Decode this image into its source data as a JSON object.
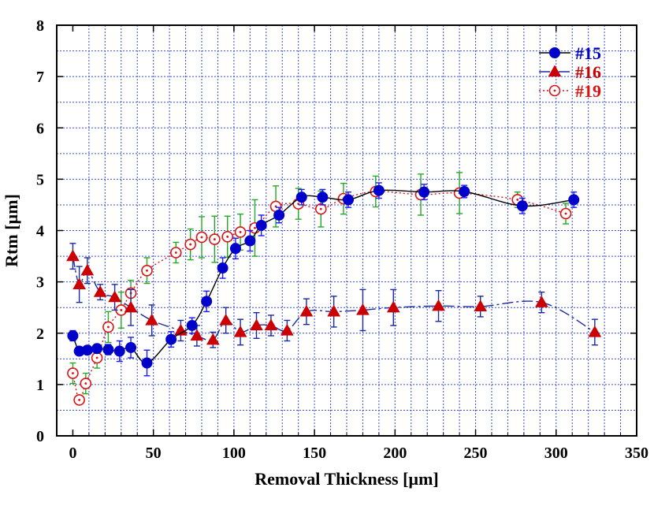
{
  "chart_data": {
    "type": "scatter",
    "title": "",
    "xlabel": "Removal Thickness [µm]",
    "ylabel": "Rtm [µm]",
    "xlim": [
      -10,
      350
    ],
    "ylim": [
      0,
      8
    ],
    "xticks": [
      0,
      50,
      100,
      150,
      200,
      250,
      300,
      350
    ],
    "yticks": [
      0,
      1,
      2,
      3,
      4,
      5,
      6,
      7,
      8
    ],
    "grid": true,
    "legend_position": "top-right",
    "series": [
      {
        "name": "#15",
        "color": "#0000cc",
        "marker": "circle-filled",
        "line": "solid",
        "line_color": "#000000",
        "error_color": "#1a1aff",
        "points": [
          {
            "x": 0,
            "y": 1.95,
            "err": 0.1
          },
          {
            "x": 4,
            "y": 1.65,
            "err": 0.08
          },
          {
            "x": 9,
            "y": 1.67,
            "err": 0.08
          },
          {
            "x": 15,
            "y": 1.7,
            "err": 0.08
          },
          {
            "x": 22,
            "y": 1.68,
            "err": 0.1
          },
          {
            "x": 29,
            "y": 1.65,
            "err": 0.2
          },
          {
            "x": 36,
            "y": 1.72,
            "err": 0.2
          },
          {
            "x": 46,
            "y": 1.42,
            "err": 0.25
          },
          {
            "x": 61,
            "y": 1.88,
            "err": 0.15
          },
          {
            "x": 74,
            "y": 2.15,
            "err": 0.15
          },
          {
            "x": 83,
            "y": 2.62,
            "err": 0.2
          },
          {
            "x": 93,
            "y": 3.27,
            "err": 0.2
          },
          {
            "x": 101,
            "y": 3.65,
            "err": 0.2
          },
          {
            "x": 110,
            "y": 3.8,
            "err": 0.2
          },
          {
            "x": 117,
            "y": 4.1,
            "err": 0.2
          },
          {
            "x": 128,
            "y": 4.3,
            "err": 0.15
          },
          {
            "x": 142,
            "y": 4.65,
            "err": 0.15
          },
          {
            "x": 155,
            "y": 4.65,
            "err": 0.15
          },
          {
            "x": 171,
            "y": 4.6,
            "err": 0.15
          },
          {
            "x": 190,
            "y": 4.78,
            "err": 0.15
          },
          {
            "x": 218,
            "y": 4.75,
            "err": 0.15
          },
          {
            "x": 243,
            "y": 4.76,
            "err": 0.12
          },
          {
            "x": 279,
            "y": 4.48,
            "err": 0.15
          },
          {
            "x": 311,
            "y": 4.6,
            "err": 0.15
          }
        ]
      },
      {
        "name": "#16",
        "color": "#cc0000",
        "marker": "triangle-filled",
        "line": "dashdot",
        "line_color": "#1a2aa0",
        "error_color": "#1a2aa0",
        "points": [
          {
            "x": 0,
            "y": 3.5,
            "err": 0.25
          },
          {
            "x": 4,
            "y": 2.95,
            "err": 0.35
          },
          {
            "x": 9,
            "y": 3.22,
            "err": 0.25
          },
          {
            "x": 17,
            "y": 2.8,
            "err": 0.15
          },
          {
            "x": 26,
            "y": 2.7,
            "err": 0.25
          },
          {
            "x": 36,
            "y": 2.5,
            "err": 0.35
          },
          {
            "x": 49,
            "y": 2.25,
            "err": 0.3
          },
          {
            "x": 67,
            "y": 2.05,
            "err": 0.2
          },
          {
            "x": 77,
            "y": 1.95,
            "err": 0.2
          },
          {
            "x": 87,
            "y": 1.87,
            "err": 0.15
          },
          {
            "x": 95,
            "y": 2.25,
            "err": 0.25
          },
          {
            "x": 104,
            "y": 2.02,
            "err": 0.25
          },
          {
            "x": 114,
            "y": 2.15,
            "err": 0.25
          },
          {
            "x": 123,
            "y": 2.15,
            "err": 0.2
          },
          {
            "x": 133,
            "y": 2.05,
            "err": 0.2
          },
          {
            "x": 145,
            "y": 2.42,
            "err": 0.25
          },
          {
            "x": 162,
            "y": 2.42,
            "err": 0.3
          },
          {
            "x": 180,
            "y": 2.45,
            "err": 0.4
          },
          {
            "x": 199,
            "y": 2.5,
            "err": 0.35
          },
          {
            "x": 227,
            "y": 2.53,
            "err": 0.3
          },
          {
            "x": 253,
            "y": 2.52,
            "err": 0.2
          },
          {
            "x": 291,
            "y": 2.6,
            "err": 0.2
          },
          {
            "x": 324,
            "y": 2.02,
            "err": 0.25
          }
        ]
      },
      {
        "name": "#19",
        "color": "#dd1111",
        "marker": "circle-open",
        "line": "dotted",
        "line_color": "#dd1111",
        "error_color": "#22aa22",
        "points": [
          {
            "x": 0,
            "y": 1.22,
            "err": 0.2
          },
          {
            "x": 4,
            "y": 0.7,
            "err": 0.05
          },
          {
            "x": 8,
            "y": 1.02,
            "err": 0.2
          },
          {
            "x": 15,
            "y": 1.52,
            "err": 0.2
          },
          {
            "x": 22,
            "y": 2.12,
            "err": 0.3
          },
          {
            "x": 30,
            "y": 2.45,
            "err": 0.35
          },
          {
            "x": 36,
            "y": 2.78,
            "err": 0.25
          },
          {
            "x": 46,
            "y": 3.22,
            "err": 0.25
          },
          {
            "x": 64,
            "y": 3.57,
            "err": 0.2
          },
          {
            "x": 73,
            "y": 3.73,
            "err": 0.3
          },
          {
            "x": 80,
            "y": 3.87,
            "err": 0.4
          },
          {
            "x": 88,
            "y": 3.83,
            "err": 0.45
          },
          {
            "x": 96,
            "y": 3.88,
            "err": 0.4
          },
          {
            "x": 104,
            "y": 3.97,
            "err": 0.35
          },
          {
            "x": 113,
            "y": 4.05,
            "err": 0.55
          },
          {
            "x": 126,
            "y": 4.47,
            "err": 0.4
          },
          {
            "x": 140,
            "y": 4.52,
            "err": 0.3
          },
          {
            "x": 154,
            "y": 4.42,
            "err": 0.35
          },
          {
            "x": 168,
            "y": 4.62,
            "err": 0.3
          },
          {
            "x": 188,
            "y": 4.76,
            "err": 0.3
          },
          {
            "x": 216,
            "y": 4.7,
            "err": 0.4
          },
          {
            "x": 240,
            "y": 4.73,
            "err": 0.4
          },
          {
            "x": 276,
            "y": 4.6,
            "err": 0.15
          },
          {
            "x": 306,
            "y": 4.33,
            "err": 0.2
          }
        ]
      }
    ]
  }
}
